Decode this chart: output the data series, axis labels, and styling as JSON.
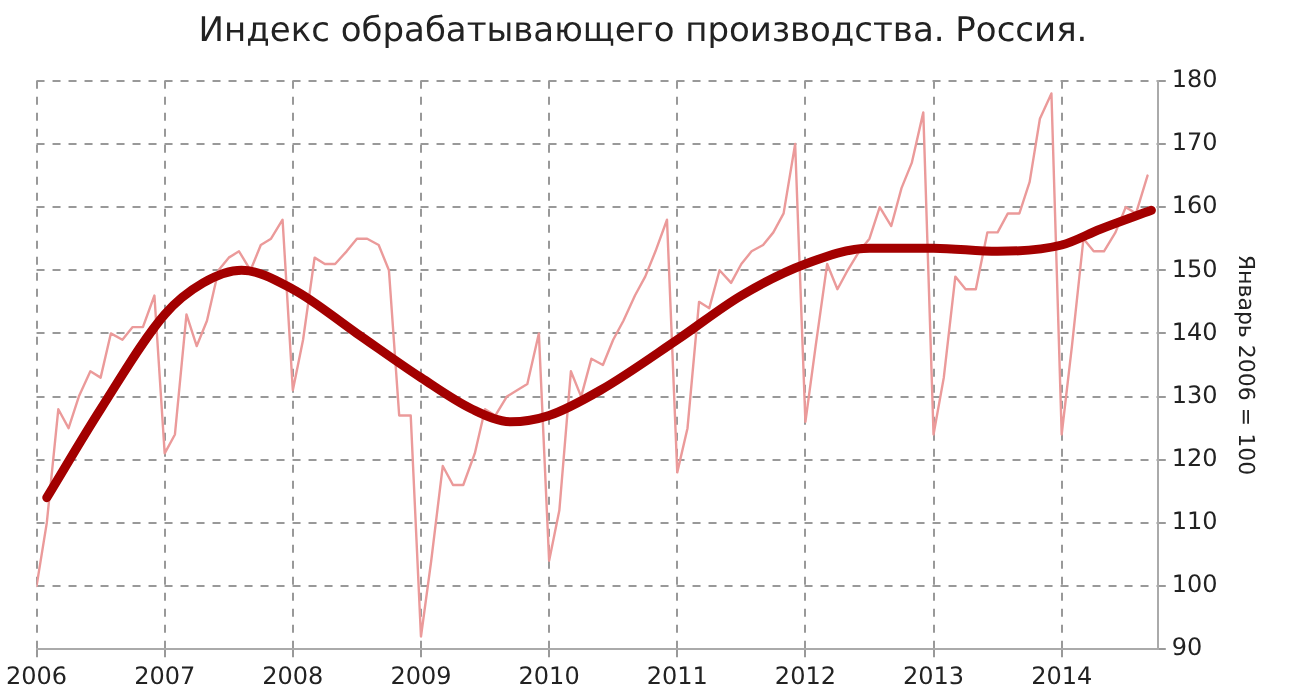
{
  "chart_data": {
    "type": "line",
    "title": "Индекс обрабатывающего производства. Россия.",
    "ylabel": "Январь 2006 = 100",
    "xlim": [
      2006,
      2014.75
    ],
    "xticks": [
      2006,
      2007,
      2008,
      2009,
      2010,
      2011,
      2012,
      2013,
      2014
    ],
    "ylim": [
      90,
      180
    ],
    "yticks": [
      90,
      100,
      110,
      120,
      130,
      140,
      150,
      160,
      170,
      180
    ],
    "grid": true,
    "legend": false,
    "marker": "none",
    "series": [
      {
        "color": "#eb9a9a",
        "x": [
          2006.0,
          2006.08,
          2006.17,
          2006.25,
          2006.33,
          2006.42,
          2006.5,
          2006.58,
          2006.67,
          2006.75,
          2006.83,
          2006.92,
          2007.0,
          2007.08,
          2007.17,
          2007.25,
          2007.33,
          2007.42,
          2007.5,
          2007.58,
          2007.67,
          2007.75,
          2007.83,
          2007.92,
          2008.0,
          2008.08,
          2008.17,
          2008.25,
          2008.33,
          2008.42,
          2008.5,
          2008.58,
          2008.67,
          2008.75,
          2008.83,
          2008.92,
          2009.0,
          2009.08,
          2009.17,
          2009.25,
          2009.33,
          2009.42,
          2009.5,
          2009.58,
          2009.67,
          2009.75,
          2009.83,
          2009.92,
          2010.0,
          2010.08,
          2010.17,
          2010.25,
          2010.33,
          2010.42,
          2010.5,
          2010.58,
          2010.67,
          2010.75,
          2010.83,
          2010.92,
          2011.0,
          2011.08,
          2011.17,
          2011.25,
          2011.33,
          2011.42,
          2011.5,
          2011.58,
          2011.67,
          2011.75,
          2011.83,
          2011.92,
          2012.0,
          2012.08,
          2012.17,
          2012.25,
          2012.33,
          2012.42,
          2012.5,
          2012.58,
          2012.67,
          2012.75,
          2012.83,
          2012.92,
          2013.0,
          2013.08,
          2013.17,
          2013.25,
          2013.33,
          2013.42,
          2013.5,
          2013.58,
          2013.67,
          2013.75,
          2013.83,
          2013.92,
          2014.0,
          2014.08,
          2014.17,
          2014.25,
          2014.33,
          2014.42,
          2014.5,
          2014.58,
          2014.67
        ],
        "values": [
          100,
          110,
          128,
          125,
          130,
          134,
          133,
          140,
          139,
          141,
          141,
          146,
          121,
          124,
          143,
          138,
          142,
          150,
          152,
          153,
          150,
          154,
          155,
          158,
          131,
          139,
          152,
          151,
          151,
          153,
          155,
          155,
          154,
          150,
          127,
          127,
          92,
          104,
          119,
          116,
          116,
          121,
          128,
          127,
          130,
          131,
          132,
          140,
          104,
          112,
          134,
          130,
          136,
          135,
          139,
          142,
          146,
          149,
          153,
          158,
          118,
          125,
          145,
          144,
          150,
          148,
          151,
          153,
          154,
          156,
          159,
          170,
          126,
          138,
          151,
          147,
          150,
          153,
          155,
          160,
          157,
          163,
          167,
          175,
          124,
          133,
          149,
          147,
          147,
          156,
          156,
          159,
          159,
          164,
          174,
          178,
          124,
          138,
          155,
          153,
          153,
          156,
          160,
          159,
          165
        ]
      },
      {
        "color": "#a30000",
        "x": [
          2006.08,
          2006.5,
          2007.0,
          2007.3,
          2007.6,
          2008.0,
          2008.5,
          2009.0,
          2009.4,
          2009.7,
          2010.0,
          2010.4,
          2011.0,
          2011.5,
          2012.0,
          2012.5,
          2013.0,
          2013.5,
          2014.0,
          2014.3,
          2014.7
        ],
        "values": [
          114,
          128,
          143,
          148,
          150,
          147,
          140,
          133,
          128,
          126,
          127,
          131,
          139,
          146,
          151,
          153.5,
          153.5,
          153,
          154,
          156.5,
          159.5
        ]
      }
    ]
  }
}
